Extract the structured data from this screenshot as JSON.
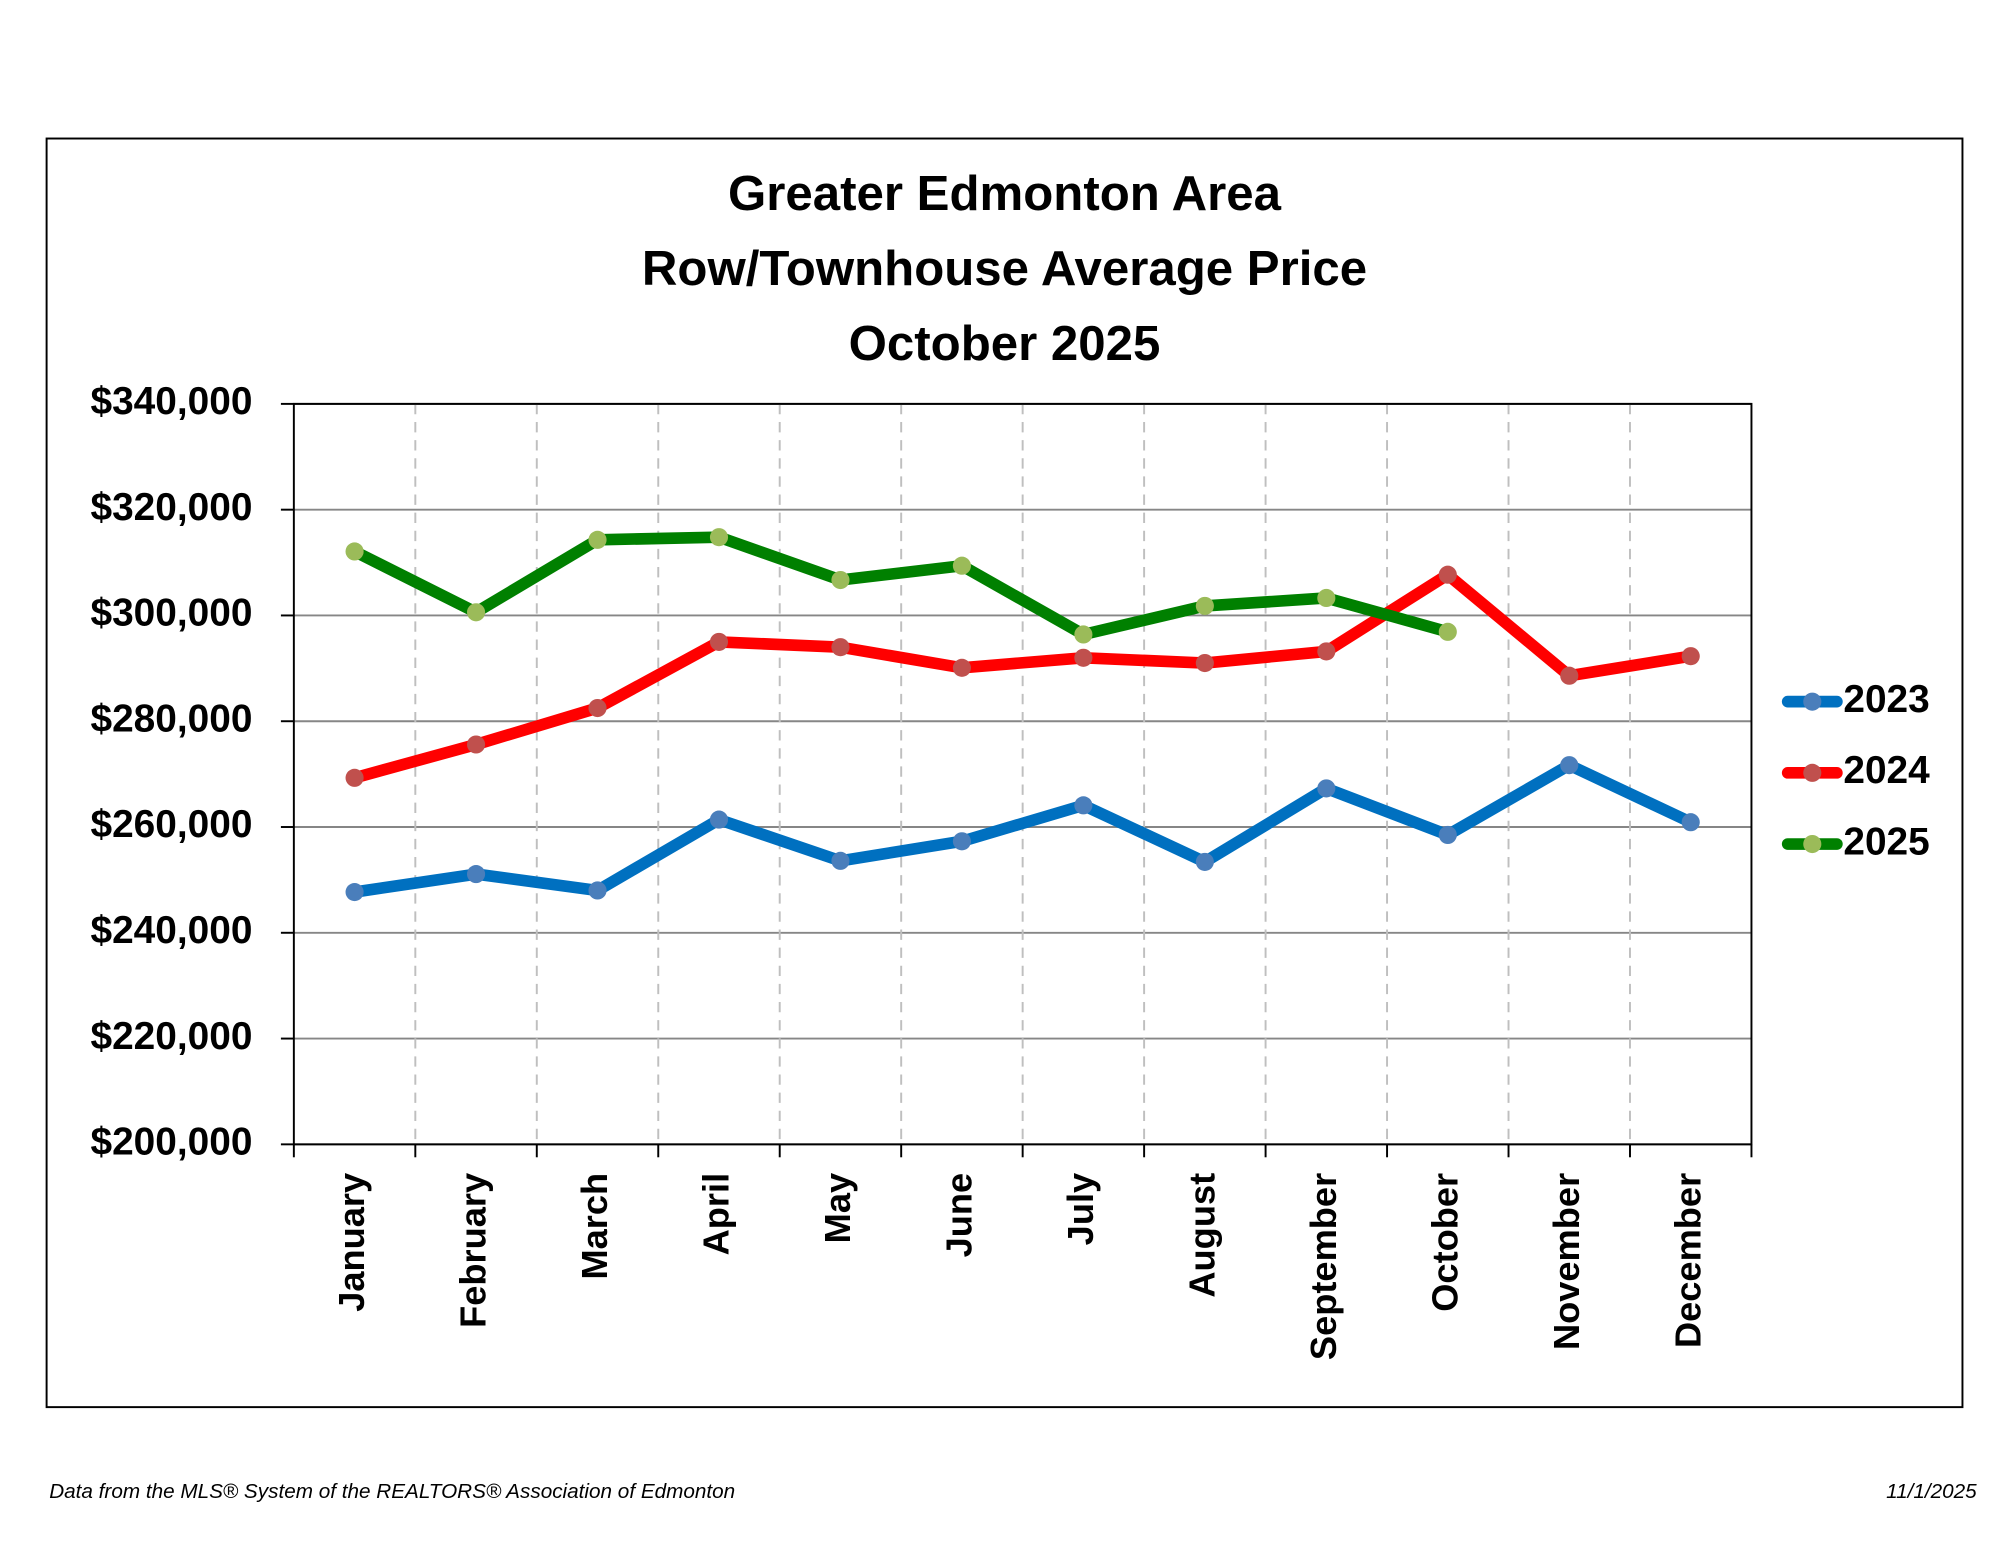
{
  "chart_data": {
    "type": "line",
    "title": [
      "Greater Edmonton Area",
      "Row/Townhouse Average Price",
      "October 2025"
    ],
    "categories": [
      "January",
      "February",
      "March",
      "April",
      "May",
      "June",
      "July",
      "August",
      "September",
      "October",
      "November",
      "December"
    ],
    "series": [
      {
        "name": "2023",
        "color": "#0070c0",
        "marker_color": "#4a7ebb",
        "values": [
          247700,
          251100,
          248000,
          261400,
          253600,
          257300,
          264100,
          253400,
          267300,
          258500,
          271700,
          260900
        ]
      },
      {
        "name": "2024",
        "color": "#ff0000",
        "marker_color": "#c0504d",
        "values": [
          269300,
          275600,
          282500,
          295000,
          294000,
          290100,
          292000,
          291000,
          293200,
          307700,
          288600,
          292300
        ]
      },
      {
        "name": "2025",
        "color": "#008000",
        "marker_color": "#9bbb59",
        "values": [
          312100,
          300600,
          314300,
          314800,
          306700,
          309400,
          296400,
          301800,
          303300,
          296900,
          null,
          null
        ]
      }
    ],
    "ylim": [
      200000,
      340000
    ],
    "yticks": [
      {
        "value": 200000,
        "label": "$200,000"
      },
      {
        "value": 220000,
        "label": "$220,000"
      },
      {
        "value": 240000,
        "label": "$240,000"
      },
      {
        "value": 260000,
        "label": "$260,000"
      },
      {
        "value": 280000,
        "label": "$280,000"
      },
      {
        "value": 300000,
        "label": "$300,000"
      },
      {
        "value": 320000,
        "label": "$320,000"
      },
      {
        "value": 340000,
        "label": "$340,000"
      }
    ],
    "grid": true,
    "legend": "right",
    "footer_left": "Data from the MLS® System of the REALTORS® Association of Edmonton",
    "footer_right": "11/1/2025"
  }
}
